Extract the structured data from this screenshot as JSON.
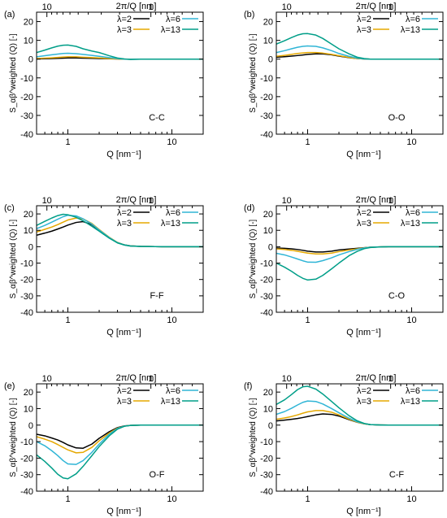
{
  "figure": {
    "colors": {
      "lambda2": "#000000",
      "lambda3": "#e5a800",
      "lambda6": "#30b5d6",
      "lambda13": "#009e88"
    }
  },
  "chart_data": [
    {
      "panel": "(a)",
      "type": "line",
      "pair": "C-C",
      "top_axis_label": "2π/Q [nm]",
      "top_ticks": [
        "10",
        "1"
      ],
      "xlabel": "Q [nm⁻¹]",
      "ylabel": "S_αβ^weighted (Q) [-]",
      "xscale": "log",
      "xlim": [
        0.5,
        20
      ],
      "ylim": [
        -40,
        25
      ],
      "xticks": [
        "1",
        "10"
      ],
      "yticks": [
        20,
        10,
        0,
        -10,
        -20,
        -30,
        -40
      ],
      "legend_position": "top-right",
      "grid": false,
      "x": [
        0.5,
        0.6,
        0.7,
        0.8,
        0.9,
        1.0,
        1.2,
        1.4,
        1.7,
        2.0,
        2.5,
        3.0,
        3.5,
        4.0,
        5.0,
        6.0,
        8.0,
        10.0,
        13.0,
        17.0,
        20.0
      ],
      "series": [
        {
          "name": "λ=2",
          "values": [
            0.1,
            0.2,
            0.3,
            0.4,
            0.5,
            0.6,
            0.6,
            0.5,
            0.4,
            0.3,
            0.2,
            0.1,
            0.0,
            0.0,
            0.0,
            0.0,
            0.0,
            0.0,
            0.0,
            0.0,
            0.0
          ]
        },
        {
          "name": "λ=3",
          "values": [
            0.3,
            0.5,
            0.7,
            0.9,
            1.1,
            1.2,
            1.2,
            1.0,
            0.8,
            0.6,
            0.3,
            0.1,
            0.0,
            0.0,
            0.0,
            0.0,
            0.0,
            0.0,
            0.0,
            0.0,
            0.0
          ]
        },
        {
          "name": "λ=6",
          "values": [
            1.2,
            1.8,
            2.3,
            2.7,
            3.0,
            3.1,
            2.9,
            2.5,
            2.0,
            1.5,
            0.8,
            0.3,
            0.0,
            -0.1,
            0.0,
            0.0,
            0.0,
            0.0,
            0.0,
            0.0,
            0.0
          ]
        },
        {
          "name": "λ=13",
          "values": [
            3.5,
            4.8,
            6.0,
            6.9,
            7.4,
            7.5,
            6.8,
            5.5,
            4.3,
            3.5,
            1.8,
            0.6,
            0.1,
            -0.2,
            0.0,
            0.0,
            0.0,
            0.0,
            0.0,
            0.0,
            0.0
          ]
        }
      ]
    },
    {
      "panel": "(b)",
      "type": "line",
      "pair": "O-O",
      "top_axis_label": "2π/Q [nm]",
      "top_ticks": [
        "10",
        "1"
      ],
      "xlabel": "Q [nm⁻¹]",
      "ylabel": "S_αβ^weighted (Q) [-]",
      "xscale": "log",
      "xlim": [
        0.5,
        20
      ],
      "ylim": [
        -40,
        25
      ],
      "xticks": [
        "1",
        "10"
      ],
      "yticks": [
        20,
        10,
        0,
        -10,
        -20,
        -30,
        -40
      ],
      "legend_position": "top-right",
      "grid": false,
      "x": [
        0.5,
        0.6,
        0.7,
        0.8,
        0.9,
        1.0,
        1.2,
        1.4,
        1.7,
        2.0,
        2.5,
        3.0,
        3.5,
        4.0,
        5.0,
        6.0,
        8.0,
        10.0,
        13.0,
        17.0,
        20.0
      ],
      "series": [
        {
          "name": "λ=2",
          "values": [
            1.0,
            1.3,
            1.6,
            1.9,
            2.2,
            2.5,
            2.8,
            2.8,
            2.3,
            1.6,
            0.8,
            0.3,
            0.1,
            0.0,
            0.0,
            0.0,
            0.0,
            0.0,
            0.0,
            0.0,
            0.0
          ]
        },
        {
          "name": "λ=3",
          "values": [
            1.5,
            2.0,
            2.5,
            3.0,
            3.3,
            3.5,
            3.5,
            3.2,
            2.5,
            1.8,
            0.9,
            0.3,
            0.1,
            0.0,
            0.0,
            0.0,
            0.0,
            0.0,
            0.0,
            0.0,
            0.0
          ]
        },
        {
          "name": "λ=6",
          "values": [
            3.5,
            4.5,
            5.5,
            6.3,
            6.8,
            7.0,
            6.8,
            6.0,
            4.5,
            3.0,
            1.5,
            0.5,
            0.1,
            0.0,
            0.0,
            0.0,
            0.0,
            0.0,
            0.0,
            0.0,
            0.0
          ]
        },
        {
          "name": "λ=13",
          "values": [
            8.0,
            9.8,
            11.5,
            12.8,
            13.5,
            13.6,
            12.8,
            11.0,
            8.0,
            5.5,
            2.8,
            1.0,
            0.3,
            0.0,
            0.0,
            0.0,
            0.0,
            0.0,
            0.0,
            0.0,
            0.0
          ]
        }
      ]
    },
    {
      "panel": "(c)",
      "type": "line",
      "pair": "F-F",
      "top_axis_label": "2π/Q [nm]",
      "top_ticks": [
        "10",
        "1"
      ],
      "xlabel": "Q [nm⁻¹]",
      "ylabel": "S_αβ^weighted (Q) [-]",
      "xscale": "log",
      "xlim": [
        0.5,
        20
      ],
      "ylim": [
        -40,
        25
      ],
      "xticks": [
        "1",
        "10"
      ],
      "yticks": [
        20,
        10,
        0,
        -10,
        -20,
        -30,
        -40
      ],
      "legend_position": "top-right",
      "grid": false,
      "x": [
        0.5,
        0.6,
        0.7,
        0.8,
        0.9,
        1.0,
        1.2,
        1.4,
        1.7,
        2.0,
        2.5,
        3.0,
        3.5,
        4.0,
        5.0,
        6.0,
        8.0,
        10.0,
        13.0,
        17.0,
        20.0
      ],
      "series": [
        {
          "name": "λ=2",
          "values": [
            7.0,
            8.3,
            9.5,
            10.8,
            12.0,
            13.2,
            14.8,
            15.3,
            13.5,
            10.0,
            5.5,
            2.5,
            1.1,
            0.5,
            0.2,
            0.1,
            0.0,
            0.0,
            0.0,
            0.0,
            0.0
          ]
        },
        {
          "name": "λ=3",
          "values": [
            9.0,
            10.6,
            12.0,
            13.5,
            15.0,
            16.3,
            17.5,
            17.0,
            14.2,
            10.5,
            5.8,
            2.6,
            1.1,
            0.5,
            0.2,
            0.1,
            0.0,
            0.0,
            0.0,
            0.0,
            0.0
          ]
        },
        {
          "name": "λ=6",
          "values": [
            11.0,
            13.0,
            15.0,
            16.8,
            18.3,
            19.2,
            18.8,
            17.0,
            13.8,
            10.2,
            5.6,
            2.5,
            1.1,
            0.5,
            0.2,
            0.1,
            0.0,
            0.0,
            0.0,
            0.0,
            0.0
          ]
        },
        {
          "name": "λ=13",
          "values": [
            13.0,
            15.5,
            17.5,
            19.0,
            19.8,
            19.5,
            18.0,
            15.8,
            12.5,
            9.5,
            5.2,
            2.3,
            1.0,
            0.4,
            0.2,
            0.1,
            0.0,
            0.0,
            0.0,
            0.0,
            0.0
          ]
        }
      ]
    },
    {
      "panel": "(d)",
      "type": "line",
      "pair": "C-O",
      "top_axis_label": "2π/Q [nm]",
      "top_ticks": [
        "10",
        "1"
      ],
      "xlabel": "Q [nm⁻¹]",
      "ylabel": "S_αβ^weighted (Q) [-]",
      "xscale": "log",
      "xlim": [
        0.5,
        20
      ],
      "ylim": [
        -40,
        25
      ],
      "xticks": [
        "1",
        "10"
      ],
      "yticks": [
        20,
        10,
        0,
        -10,
        -20,
        -30,
        -40
      ],
      "legend_position": "top-right",
      "grid": false,
      "x": [
        0.5,
        0.6,
        0.7,
        0.8,
        0.9,
        1.0,
        1.2,
        1.4,
        1.7,
        2.0,
        2.5,
        3.0,
        3.5,
        4.0,
        5.0,
        6.0,
        8.0,
        10.0,
        13.0,
        17.0,
        20.0
      ],
      "series": [
        {
          "name": "λ=2",
          "values": [
            -0.8,
            -1.0,
            -1.3,
            -1.7,
            -2.2,
            -2.7,
            -3.2,
            -3.2,
            -2.7,
            -2.0,
            -1.4,
            -1.0,
            -0.6,
            -0.3,
            -0.1,
            0.0,
            0.0,
            0.0,
            0.0,
            0.0,
            0.0
          ]
        },
        {
          "name": "λ=3",
          "values": [
            -1.3,
            -1.7,
            -2.2,
            -2.8,
            -3.4,
            -3.9,
            -4.4,
            -4.4,
            -3.9,
            -3.0,
            -2.0,
            -1.3,
            -0.7,
            -0.3,
            -0.1,
            0.0,
            0.0,
            0.0,
            0.0,
            0.0,
            0.0
          ]
        },
        {
          "name": "λ=6",
          "values": [
            -4.0,
            -5.0,
            -6.3,
            -7.5,
            -8.6,
            -9.4,
            -9.5,
            -8.5,
            -6.8,
            -5.0,
            -3.0,
            -1.6,
            -0.8,
            -0.3,
            -0.1,
            0.0,
            0.0,
            0.0,
            0.0,
            0.0,
            0.0
          ]
        },
        {
          "name": "λ=13",
          "values": [
            -10.0,
            -12.5,
            -15.0,
            -17.5,
            -19.3,
            -20.3,
            -19.8,
            -17.5,
            -13.5,
            -10.0,
            -5.5,
            -2.8,
            -1.2,
            -0.5,
            -0.1,
            0.0,
            0.0,
            0.0,
            0.0,
            0.0,
            0.0
          ]
        }
      ]
    },
    {
      "panel": "(e)",
      "type": "line",
      "pair": "O-F",
      "top_axis_label": "2π/Q [nm]",
      "top_ticks": [
        "10",
        "1"
      ],
      "xlabel": "Q [nm⁻¹]",
      "ylabel": "S_αβ^weighted (Q) [-]",
      "xscale": "log",
      "xlim": [
        0.5,
        20
      ],
      "ylim": [
        -40,
        25
      ],
      "xticks": [
        "1",
        "10"
      ],
      "yticks": [
        20,
        10,
        0,
        -10,
        -20,
        -30,
        -40
      ],
      "legend_position": "top-right",
      "grid": false,
      "x": [
        0.5,
        0.6,
        0.7,
        0.8,
        0.9,
        1.0,
        1.2,
        1.4,
        1.7,
        2.0,
        2.5,
        3.0,
        3.5,
        4.0,
        5.0,
        6.0,
        8.0,
        10.0,
        13.0,
        17.0,
        20.0
      ],
      "series": [
        {
          "name": "λ=2",
          "values": [
            -5.5,
            -6.5,
            -7.8,
            -9.0,
            -10.5,
            -12.0,
            -13.8,
            -14.0,
            -11.5,
            -8.0,
            -4.0,
            -1.5,
            -0.5,
            -0.2,
            0.0,
            0.0,
            0.0,
            0.0,
            0.0,
            0.0,
            0.0
          ]
        },
        {
          "name": "λ=3",
          "values": [
            -7.0,
            -8.5,
            -10.0,
            -11.8,
            -13.5,
            -15.0,
            -16.8,
            -16.5,
            -13.5,
            -9.5,
            -4.8,
            -1.8,
            -0.6,
            -0.2,
            0.0,
            0.0,
            0.0,
            0.0,
            0.0,
            0.0,
            0.0
          ]
        },
        {
          "name": "λ=6",
          "values": [
            -10.0,
            -12.5,
            -15.5,
            -18.5,
            -21.5,
            -23.5,
            -23.8,
            -21.5,
            -16.5,
            -11.5,
            -5.5,
            -2.0,
            -0.6,
            -0.2,
            0.0,
            0.0,
            0.0,
            0.0,
            0.0,
            0.0,
            0.0
          ]
        },
        {
          "name": "λ=13",
          "values": [
            -18.0,
            -22.0,
            -26.0,
            -29.8,
            -32.0,
            -32.5,
            -29.5,
            -25.0,
            -18.5,
            -13.0,
            -6.5,
            -2.4,
            -0.7,
            -0.2,
            0.0,
            0.0,
            0.0,
            0.0,
            0.0,
            0.0,
            0.0
          ]
        }
      ]
    },
    {
      "panel": "(f)",
      "type": "line",
      "pair": "C-F",
      "top_axis_label": "2π/Q [nm]",
      "top_ticks": [
        "10",
        "1"
      ],
      "xlabel": "Q [nm⁻¹]",
      "ylabel": "S_αβ^weighted (Q) [-]",
      "xscale": "log",
      "xlim": [
        0.5,
        20
      ],
      "ylim": [
        -40,
        25
      ],
      "xticks": [
        "1",
        "10"
      ],
      "yticks": [
        20,
        10,
        0,
        -10,
        -20,
        -30,
        -40
      ],
      "legend_position": "top-right",
      "grid": false,
      "x": [
        0.5,
        0.6,
        0.7,
        0.8,
        0.9,
        1.0,
        1.2,
        1.4,
        1.7,
        2.0,
        2.5,
        3.0,
        3.5,
        4.0,
        5.0,
        6.0,
        8.0,
        10.0,
        13.0,
        17.0,
        20.0
      ],
      "series": [
        {
          "name": "λ=2",
          "values": [
            2.5,
            3.0,
            3.5,
            4.0,
            4.6,
            5.2,
            6.2,
            6.8,
            6.5,
            5.5,
            3.3,
            1.7,
            0.8,
            0.3,
            0.1,
            0.0,
            0.0,
            0.0,
            0.0,
            0.0,
            0.0
          ]
        },
        {
          "name": "λ=3",
          "values": [
            3.5,
            4.3,
            5.2,
            6.2,
            7.2,
            8.0,
            8.8,
            8.8,
            7.8,
            6.2,
            3.6,
            1.8,
            0.8,
            0.3,
            0.1,
            0.0,
            0.0,
            0.0,
            0.0,
            0.0,
            0.0
          ]
        },
        {
          "name": "λ=6",
          "values": [
            6.5,
            8.2,
            10.2,
            12.2,
            13.8,
            14.6,
            14.3,
            12.8,
            10.0,
            7.5,
            4.2,
            2.0,
            0.9,
            0.3,
            0.1,
            0.0,
            0.0,
            0.0,
            0.0,
            0.0,
            0.0
          ]
        },
        {
          "name": "λ=13",
          "values": [
            12.5,
            15.3,
            18.5,
            21.5,
            23.2,
            23.5,
            21.8,
            18.8,
            14.3,
            10.5,
            5.7,
            2.6,
            1.0,
            0.3,
            0.1,
            0.0,
            0.0,
            0.0,
            0.0,
            0.0,
            0.0
          ]
        }
      ]
    }
  ]
}
